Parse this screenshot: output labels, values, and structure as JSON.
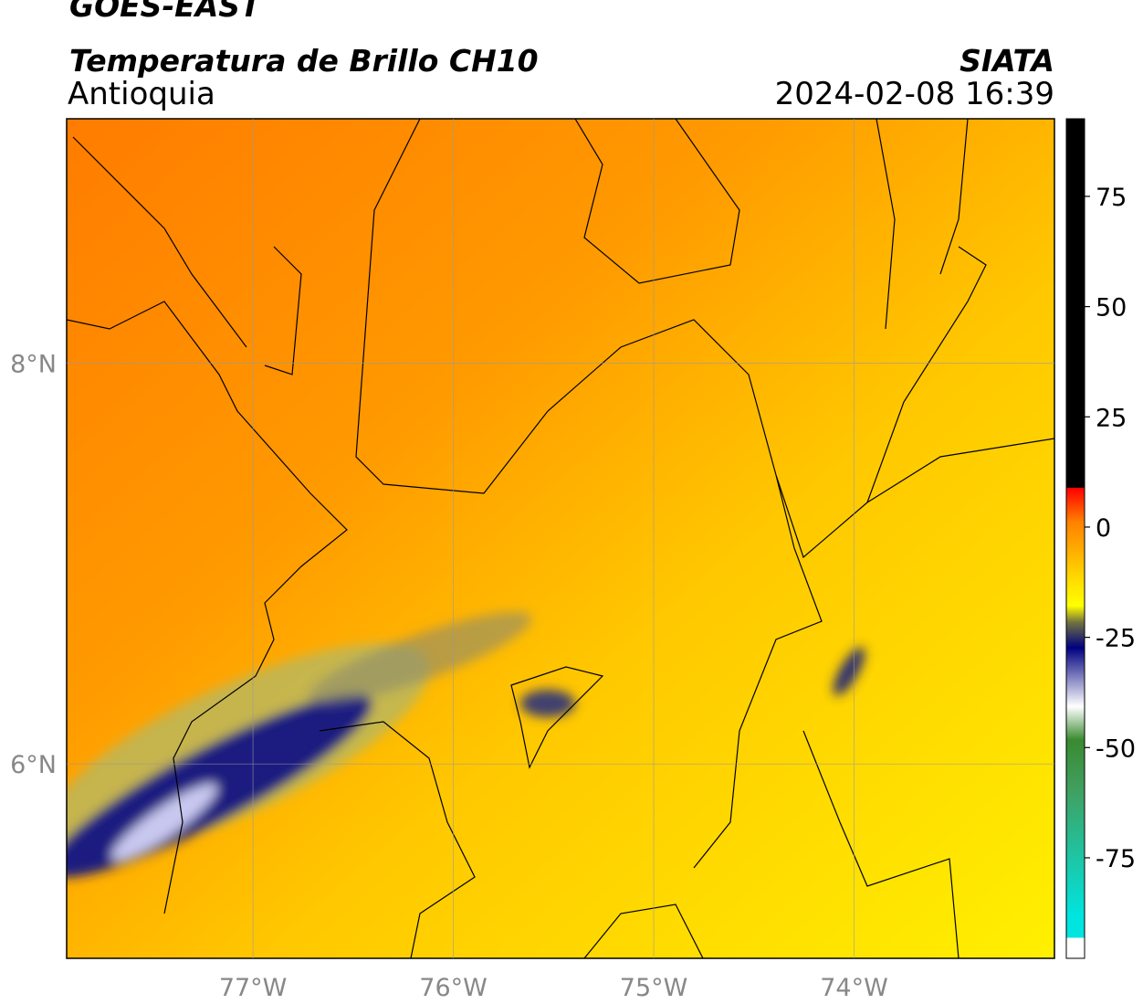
{
  "header": {
    "title": "GOES-EAST",
    "subtitle": "Temperatura de Brillo CH10",
    "region": "Antioquia",
    "source": "SIATA",
    "datetime": "2024-02-08 16:39"
  },
  "map": {
    "xlim": [
      -77.93,
      -73.0
    ],
    "ylim": [
      5.03,
      9.22
    ],
    "xticks": [
      {
        "value": -77,
        "label": "77°W"
      },
      {
        "value": -76,
        "label": "76°W"
      },
      {
        "value": -75,
        "label": "75°W"
      },
      {
        "value": -74,
        "label": "74°W"
      }
    ],
    "yticks": [
      {
        "value": 6,
        "label": "6°N"
      },
      {
        "value": 8,
        "label": "8°N"
      }
    ],
    "grid": true
  },
  "colorbar": {
    "lim": [
      -97.8,
      92.6
    ],
    "ticks": [
      75,
      50,
      25,
      0,
      -25,
      -50,
      -75
    ]
  }
}
